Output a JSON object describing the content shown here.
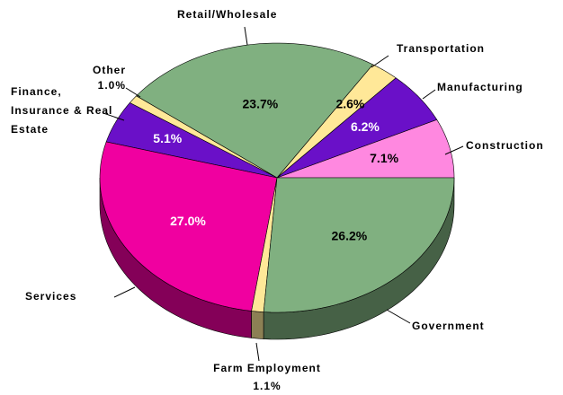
{
  "chart_data": {
    "type": "pie",
    "categories": [
      "Construction",
      "Manufacturing",
      "Transportation",
      "Retail/Wholesale",
      "Other",
      "Finance, Insurance & Real Estate",
      "Services",
      "Farm Employment",
      "Government"
    ],
    "values": [
      7.1,
      6.2,
      2.6,
      23.7,
      1.0,
      5.1,
      27.0,
      1.1,
      26.2
    ],
    "value_labels": [
      "7.1%",
      "6.2%",
      "2.6%",
      "23.7%",
      "1.0%",
      "5.1%",
      "27.0%",
      "1.1%",
      "26.2%"
    ],
    "colors": [
      "#ff88e0",
      "#6a10c8",
      "#ffe898",
      "#80b080",
      "#ffe898",
      "#6a10c8",
      "#f000a0",
      "#ffe898",
      "#80b080"
    ]
  }
}
